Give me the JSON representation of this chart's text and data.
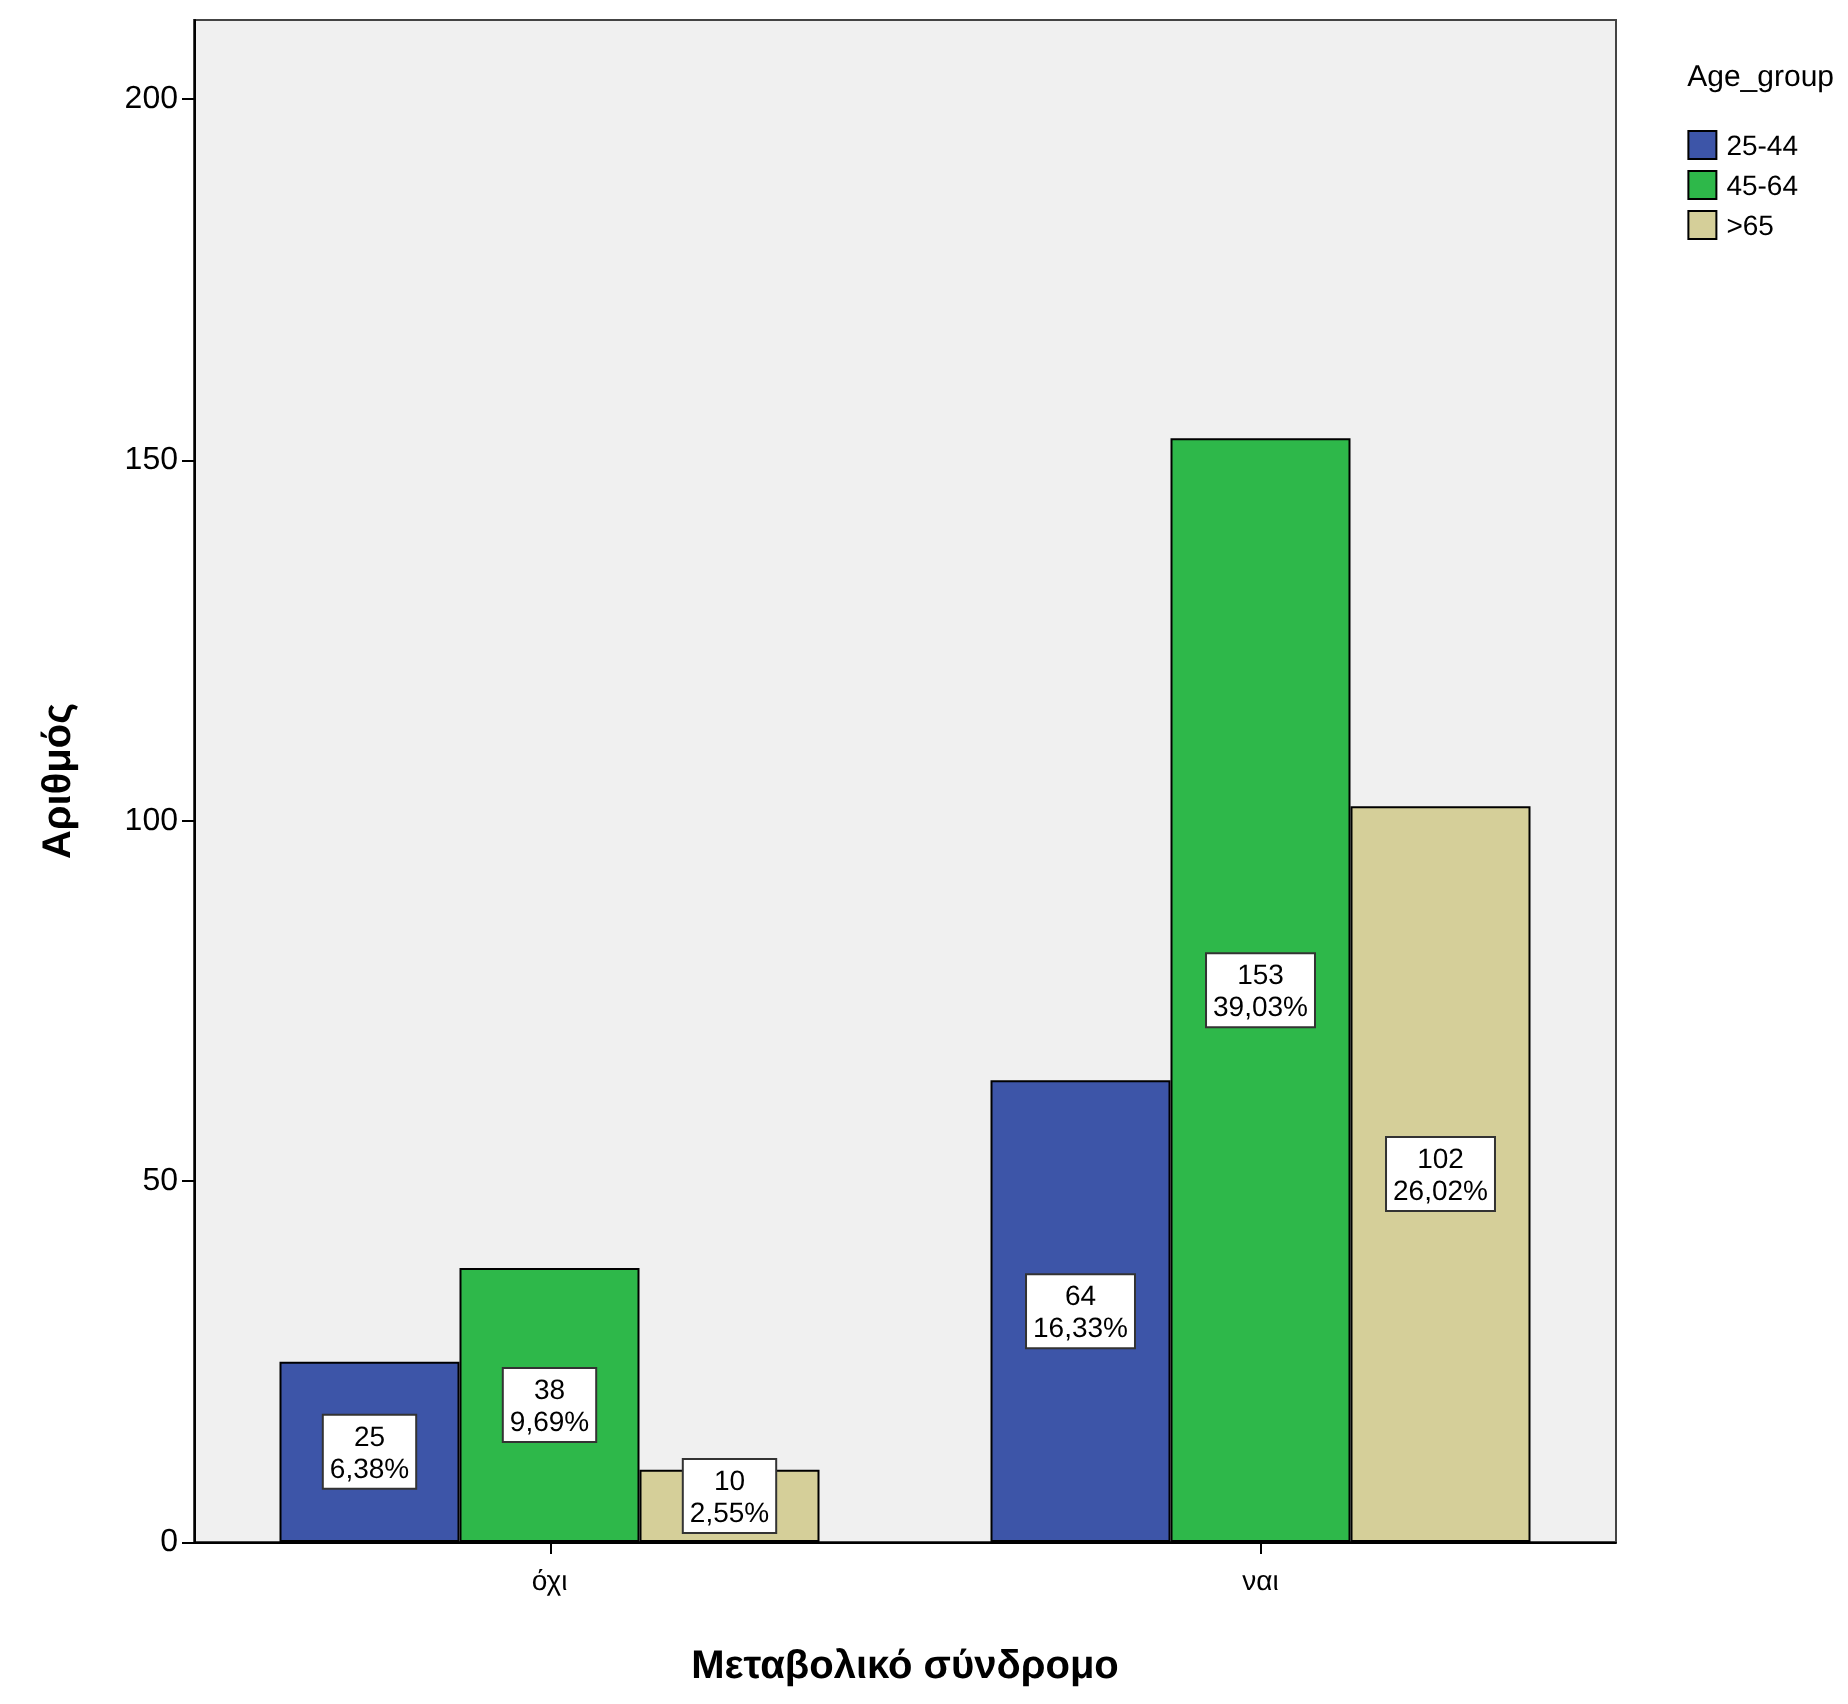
{
  "chart_data": {
    "type": "bar",
    "xlabel": "Μεταβολικό σύνδρομο",
    "ylabel": "Αριθμός",
    "legend_title": "Age_group",
    "categories": [
      "όχι",
      "ναι"
    ],
    "series": [
      {
        "name": "25-44",
        "color": "#3d55a8",
        "values": [
          25,
          64
        ],
        "value_labels": [
          "25\n6,38%",
          "64\n16,33%"
        ]
      },
      {
        "name": "45-64",
        "color": "#2eb84a",
        "values": [
          38,
          153
        ],
        "value_labels": [
          "38\n9,69%",
          "153\n39,03%"
        ]
      },
      {
        "name": ">65",
        "color": "#d5cf99",
        "values": [
          10,
          102
        ],
        "value_labels": [
          "10\n2,55%",
          "102\n26,02%"
        ]
      }
    ],
    "ylim": [
      0,
      211
    ],
    "yticks": [
      0,
      50,
      100,
      150,
      200
    ],
    "grid": false,
    "legend": "top right"
  }
}
